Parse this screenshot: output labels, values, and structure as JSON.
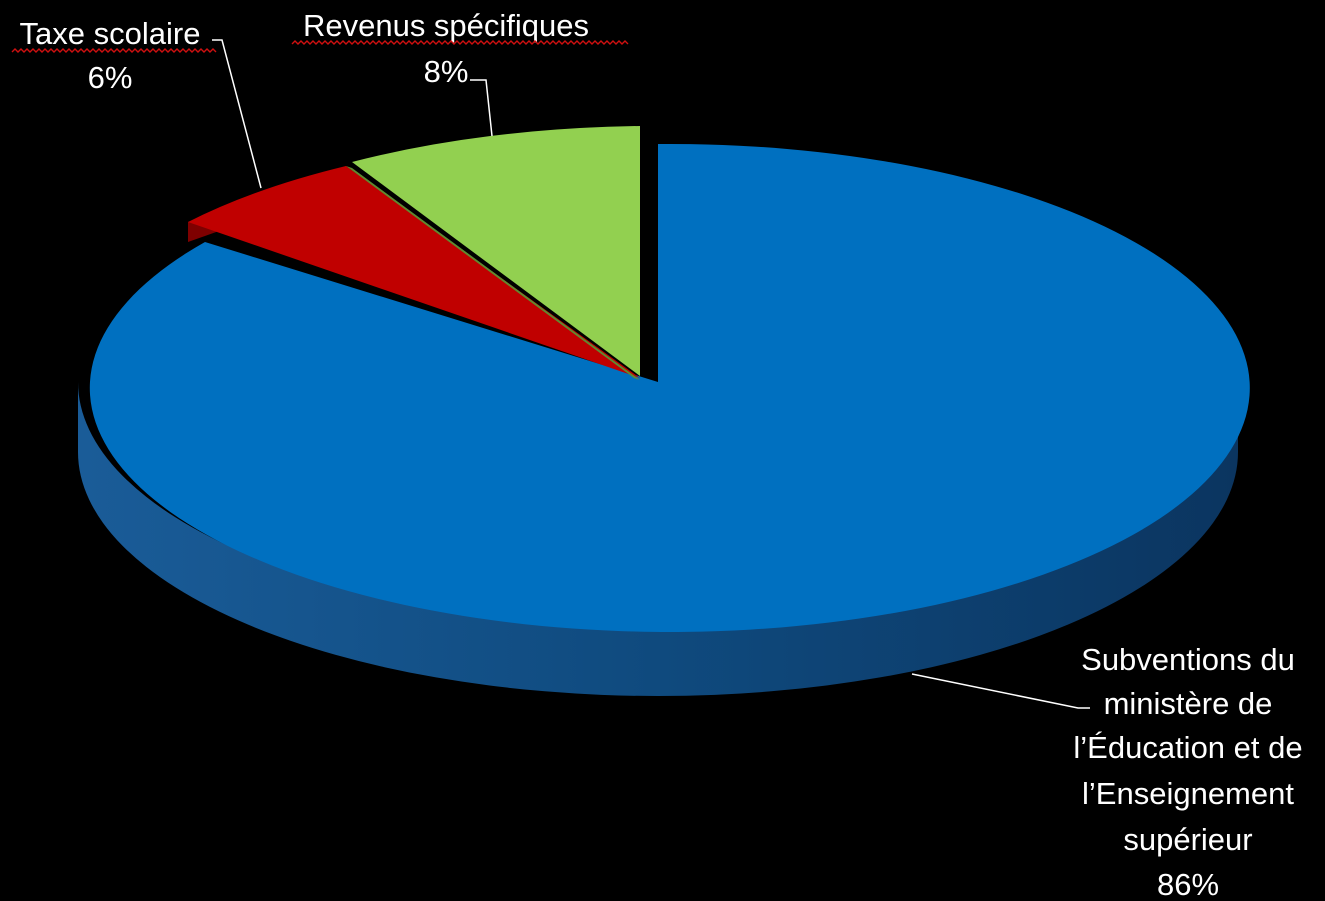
{
  "chart_data": {
    "type": "pie",
    "style": "3d-exploded",
    "slices": [
      {
        "name": "Subventions du ministère de l’Éducation et de l’Enseignement supérieur",
        "value": 86,
        "percent_label": "86%",
        "color": "#0070c0",
        "side_color": "#114f86"
      },
      {
        "name": "Taxe scolaire",
        "value": 6,
        "percent_label": "6%",
        "color": "#c00000",
        "side_color": "#7e0000"
      },
      {
        "name": "Revenus spécifiques",
        "value": 8,
        "percent_label": "8%",
        "color": "#92d050",
        "side_color": "#5f8a30"
      }
    ],
    "labels": {
      "blue": [
        "Subventions du",
        "ministère de",
        "l’Éducation et de",
        "l’Enseignement",
        "supérieur",
        "86%"
      ],
      "red": [
        "Taxe scolaire",
        "6%"
      ],
      "green": [
        "Revenus spécifiques",
        "8%"
      ]
    },
    "background": "#000000",
    "legend": "none"
  }
}
